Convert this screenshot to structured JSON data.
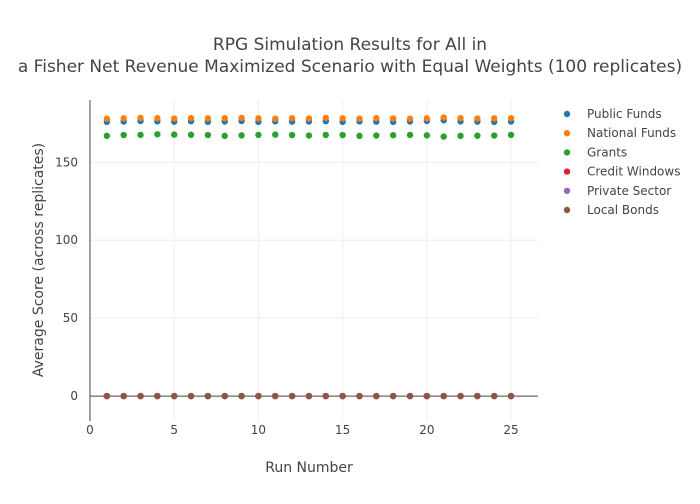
{
  "chart_data": {
    "type": "scatter",
    "title_lines": [
      "RPG Simulation Results for All in",
      "a Fisher Net Revenue Maximized Scenario with Equal Weights (100 replicates)"
    ],
    "xlabel": "Run Number",
    "ylabel": "Average Score (across replicates)",
    "xlim": [
      0,
      26.6
    ],
    "ylim": [
      -16,
      190
    ],
    "x_ticks": [
      0,
      5,
      10,
      15,
      20,
      25
    ],
    "y_ticks": [
      0,
      50,
      100,
      150
    ],
    "grid": true,
    "legend_position": "top-right",
    "x": [
      1,
      2,
      3,
      4,
      5,
      6,
      7,
      8,
      9,
      10,
      11,
      12,
      13,
      14,
      15,
      16,
      17,
      18,
      19,
      20,
      21,
      22,
      23,
      24,
      25
    ],
    "series": [
      {
        "name": "Public Funds",
        "color": "#1f77b4",
        "values": [
          176.0,
          176.2,
          176.5,
          176.3,
          176.1,
          176.4,
          176.0,
          176.2,
          176.5,
          176.0,
          176.3,
          176.1,
          176.2,
          176.4,
          176.0,
          176.3,
          176.1,
          176.0,
          176.2,
          176.5,
          177.0,
          176.3,
          176.1,
          176.0,
          176.2
        ]
      },
      {
        "name": "National Funds",
        "color": "#ff7f0e",
        "values": [
          178.0,
          178.2,
          178.5,
          178.3,
          178.1,
          178.4,
          178.2,
          178.3,
          178.5,
          178.2,
          178.0,
          178.3,
          178.1,
          178.5,
          178.2,
          178.0,
          178.3,
          178.1,
          178.0,
          178.2,
          178.8,
          178.4,
          178.1,
          178.2,
          178.3
        ]
      },
      {
        "name": "Grants",
        "color": "#2ca02c",
        "values": [
          167.0,
          167.5,
          167.6,
          168.0,
          167.8,
          167.7,
          167.5,
          167.0,
          167.3,
          167.6,
          167.8,
          167.5,
          167.2,
          167.6,
          167.5,
          167.0,
          167.2,
          167.4,
          167.6,
          167.3,
          166.5,
          167.0,
          167.1,
          167.2,
          167.6
        ]
      },
      {
        "name": "Credit Windows",
        "color": "#d62728",
        "values": [
          0,
          0,
          0,
          0,
          0,
          0,
          0,
          0,
          0,
          0,
          0,
          0,
          0,
          0,
          0,
          0,
          0,
          0,
          0,
          0,
          0,
          0,
          0,
          0,
          0
        ]
      },
      {
        "name": "Private Sector",
        "color": "#9467bd",
        "values": [
          0,
          0,
          0,
          0,
          0,
          0,
          0,
          0,
          0,
          0,
          0,
          0,
          0,
          0,
          0,
          0,
          0,
          0,
          0,
          0,
          0,
          0,
          0,
          0,
          0
        ]
      },
      {
        "name": "Local Bonds",
        "color": "#8c564b",
        "values": [
          0,
          0,
          0,
          0,
          0,
          0,
          0,
          0,
          0,
          0,
          0,
          0,
          0,
          0,
          0,
          0,
          0,
          0,
          0,
          0,
          0,
          0,
          0,
          0,
          0
        ]
      }
    ]
  }
}
